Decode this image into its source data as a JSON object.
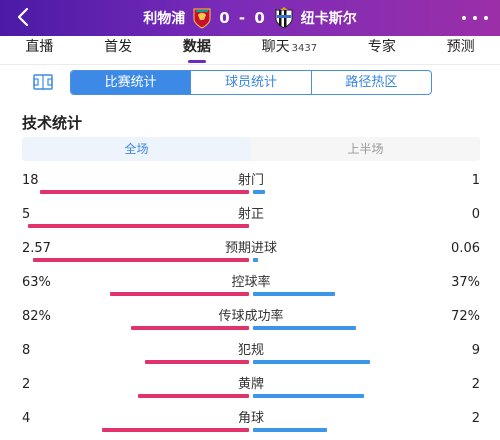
{
  "header": {
    "home_team": "利物浦",
    "score": "0 - 0",
    "away_team": "纽卡斯尔",
    "home_crest_icon": "liverpool-crest-icon",
    "away_crest_icon": "newcastle-crest-icon",
    "colors": {
      "gradient_start": "#4a1aa6",
      "gradient_end": "#9b2fa8"
    }
  },
  "nav": {
    "tabs": [
      {
        "label": "直播",
        "active": false
      },
      {
        "label": "首发",
        "active": false
      },
      {
        "label": "数据",
        "active": true
      },
      {
        "label": "聊天",
        "badge": "3437",
        "active": false
      },
      {
        "label": "专家",
        "active": false
      },
      {
        "label": "预测",
        "active": false
      }
    ]
  },
  "subtabs": {
    "icon": "pitch-icon",
    "items": [
      {
        "label": "比赛统计",
        "active": true
      },
      {
        "label": "球员统计",
        "active": false
      },
      {
        "label": "路径热区",
        "active": false
      }
    ]
  },
  "section": {
    "title": "技术统计"
  },
  "period": {
    "items": [
      {
        "label": "全场",
        "active": true
      },
      {
        "label": "上半场",
        "active": false
      }
    ]
  },
  "stats": [
    {
      "name": "射门",
      "home": "18",
      "away": "1",
      "home_share": 0.947,
      "away_share": 0.053
    },
    {
      "name": "射正",
      "home": "5",
      "away": "0",
      "home_share": 1.0,
      "away_share": 0.0
    },
    {
      "name": "预期进球",
      "home": "2.57",
      "away": "0.06",
      "home_share": 0.977,
      "away_share": 0.023
    },
    {
      "name": "控球率",
      "home": "63%",
      "away": "37%",
      "home_share": 0.63,
      "away_share": 0.37
    },
    {
      "name": "传球成功率",
      "home": "82%",
      "away": "72%",
      "home_share": 0.532,
      "away_share": 0.468
    },
    {
      "name": "犯规",
      "home": "8",
      "away": "9",
      "home_share": 0.47,
      "away_share": 0.53
    },
    {
      "name": "黄牌",
      "home": "2",
      "away": "2",
      "home_share": 0.5,
      "away_share": 0.5
    },
    {
      "name": "角球",
      "home": "4",
      "away": "2",
      "home_share": 0.667,
      "away_share": 0.333
    }
  ],
  "colors": {
    "home_bar": "#e0336b",
    "away_bar": "#3b95e8",
    "accent": "#3d8ae6"
  }
}
